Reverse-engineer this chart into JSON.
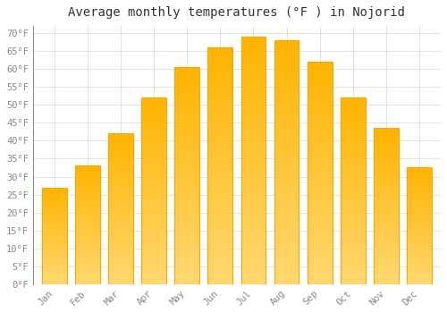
{
  "title": "Average monthly temperatures (°F ) in Nojorid",
  "months": [
    "Jan",
    "Feb",
    "Mar",
    "Apr",
    "May",
    "Jun",
    "Jul",
    "Aug",
    "Sep",
    "Oct",
    "Nov",
    "Dec"
  ],
  "values": [
    27,
    33,
    42,
    52,
    60.5,
    66,
    69,
    68,
    62,
    52,
    43.5,
    32.5
  ],
  "bar_color_top": "#FFB300",
  "bar_color_bottom": "#FFD870",
  "bar_edge_color": "#FFA500",
  "background_color": "#FFFFFF",
  "grid_color": "#DDDDDD",
  "text_color": "#888888",
  "title_color": "#333333",
  "ylim": [
    0,
    72
  ],
  "yticks": [
    0,
    5,
    10,
    15,
    20,
    25,
    30,
    35,
    40,
    45,
    50,
    55,
    60,
    65,
    70
  ],
  "title_fontsize": 10,
  "tick_fontsize": 7.5,
  "font_family": "monospace"
}
